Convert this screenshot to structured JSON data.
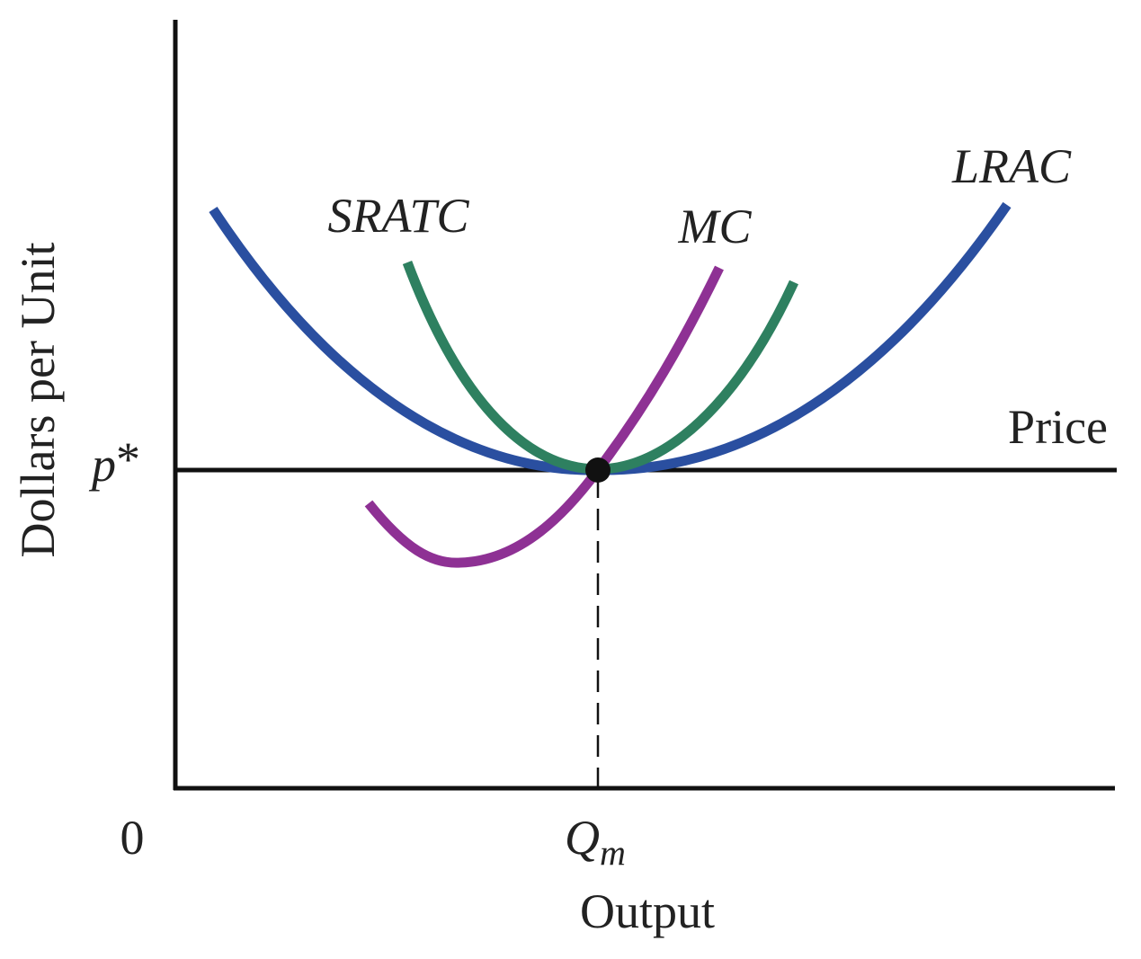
{
  "labels": {
    "y_axis": "Dollars per Unit",
    "x_axis": "Output",
    "origin": "0",
    "price_level": {
      "main": "p",
      "sup": "*"
    },
    "price_line": "Price",
    "quantity": {
      "main": "Q",
      "sub": "m"
    },
    "sratc": "SRATC",
    "mc": "MC",
    "lrac": "LRAC"
  }
}
